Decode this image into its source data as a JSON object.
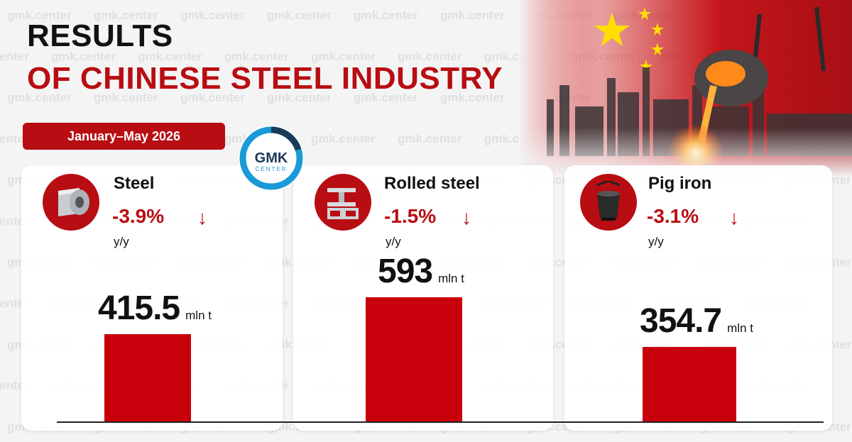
{
  "title": {
    "line1": "RESULTS",
    "line2": "OF CHINESE STEEL INDUSTRY"
  },
  "period": "January–May 2026",
  "logo": {
    "line1": "GMK",
    "line2": "CENTER"
  },
  "watermark": "gmk.center",
  "colors": {
    "accent": "#b80d12",
    "bar": "#c8000c"
  },
  "cards": [
    {
      "title": "Steel",
      "icon": "steel-coil-icon",
      "change": "-3.9%",
      "direction": "down",
      "change_label": "y/y",
      "value": "415.5",
      "unit": "mln t"
    },
    {
      "title": "Rolled steel",
      "icon": "steel-beams-icon",
      "change": "-1.5%",
      "direction": "down",
      "change_label": "y/y",
      "value": "593",
      "unit": "mln t"
    },
    {
      "title": "Pig iron",
      "icon": "ladle-icon",
      "change": "-3.1%",
      "direction": "down",
      "change_label": "y/y",
      "value": "354.7",
      "unit": "mln t"
    }
  ],
  "chart_data": {
    "type": "bar",
    "title": "RESULTS OF CHINESE STEEL INDUSTRY",
    "subtitle": "January–May 2026",
    "categories": [
      "Steel",
      "Rolled steel",
      "Pig iron"
    ],
    "values": [
      415.5,
      593,
      354.7
    ],
    "unit": "mln t",
    "changes_yoy_percent": [
      -3.9,
      -1.5,
      -3.1
    ],
    "grid": false
  }
}
